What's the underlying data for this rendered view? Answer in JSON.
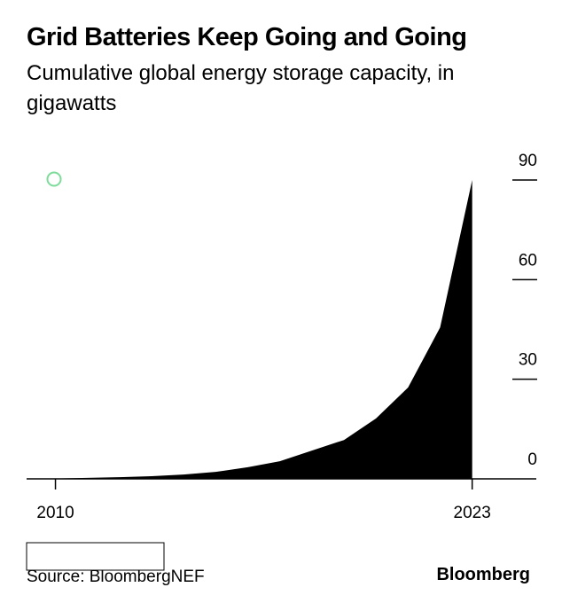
{
  "chart_data": {
    "type": "area",
    "title": "Grid Batteries Keep Going and Going",
    "subtitle": "Cumulative global energy storage capacity, in gigawatts",
    "x": [
      2010,
      2011,
      2012,
      2013,
      2014,
      2015,
      2016,
      2017,
      2018,
      2019,
      2020,
      2021,
      2022,
      2023
    ],
    "values": [
      0.1,
      0.3,
      0.5,
      0.8,
      1.3,
      2.1,
      3.5,
      5.3,
      8.5,
      11.7,
      18.2,
      27.5,
      45.6,
      90
    ],
    "color": "#000000",
    "xlim": [
      2009.1,
      2025
    ],
    "xticks": [
      2010,
      2023
    ],
    "ylim": [
      0,
      90
    ],
    "yticks": [
      0,
      30,
      60,
      90
    ],
    "source": "Source: BloombergNEF",
    "brand": "Bloomberg"
  }
}
